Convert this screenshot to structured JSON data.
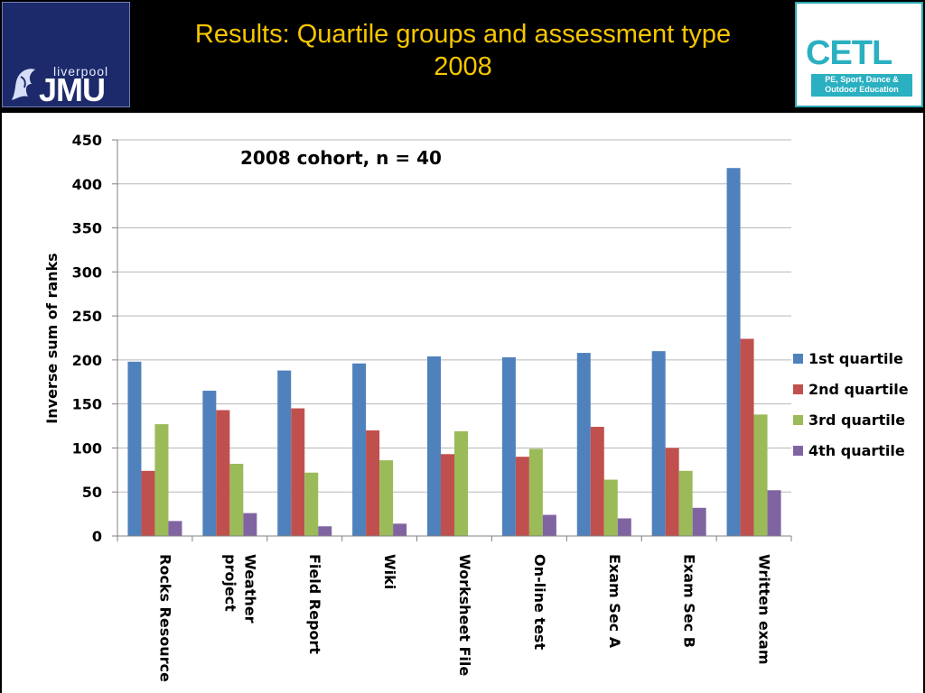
{
  "header": {
    "title_line1": "Results: Quartile groups and assessment type",
    "title_line2": "2008",
    "logo_left_small": "liverpool",
    "logo_left_big": "JMU",
    "logo_right_big": "CETL",
    "logo_right_sub_line1": "PE, Sport, Dance &",
    "logo_right_sub_line2": "Outdoor Education"
  },
  "colors": {
    "header_bg": "#000000",
    "title": "#f7c600"
  },
  "chart_data": {
    "type": "bar",
    "annotation": "2008 cohort, n = 40",
    "ylabel": "Inverse sum of ranks",
    "xlabel": "",
    "ylim": [
      0,
      450
    ],
    "yticks": [
      0,
      50,
      100,
      150,
      200,
      250,
      300,
      350,
      400,
      450
    ],
    "grid": true,
    "legend_position": "right",
    "categories": [
      [
        "Rocks Resource"
      ],
      [
        "Weather",
        "project"
      ],
      [
        "Field Report"
      ],
      [
        "Wiki"
      ],
      [
        "Worksheet File"
      ],
      [
        "On-line test"
      ],
      [
        "Exam Sec A"
      ],
      [
        "Exam Sec B"
      ],
      [
        "Written exam"
      ]
    ],
    "series": [
      {
        "name": "1st quartile",
        "color": "#4f81bd",
        "values": [
          198,
          165,
          188,
          196,
          204,
          203,
          208,
          210,
          418
        ]
      },
      {
        "name": "2nd quartile",
        "color": "#c0504d",
        "values": [
          74,
          143,
          145,
          120,
          93,
          90,
          124,
          100,
          224
        ]
      },
      {
        "name": "3rd quartile",
        "color": "#9bbb59",
        "values": [
          127,
          82,
          72,
          86,
          119,
          99,
          64,
          74,
          138
        ]
      },
      {
        "name": "4th quartile",
        "color": "#8064a2",
        "values": [
          17,
          26,
          11,
          14,
          0,
          24,
          20,
          32,
          52
        ]
      }
    ]
  }
}
